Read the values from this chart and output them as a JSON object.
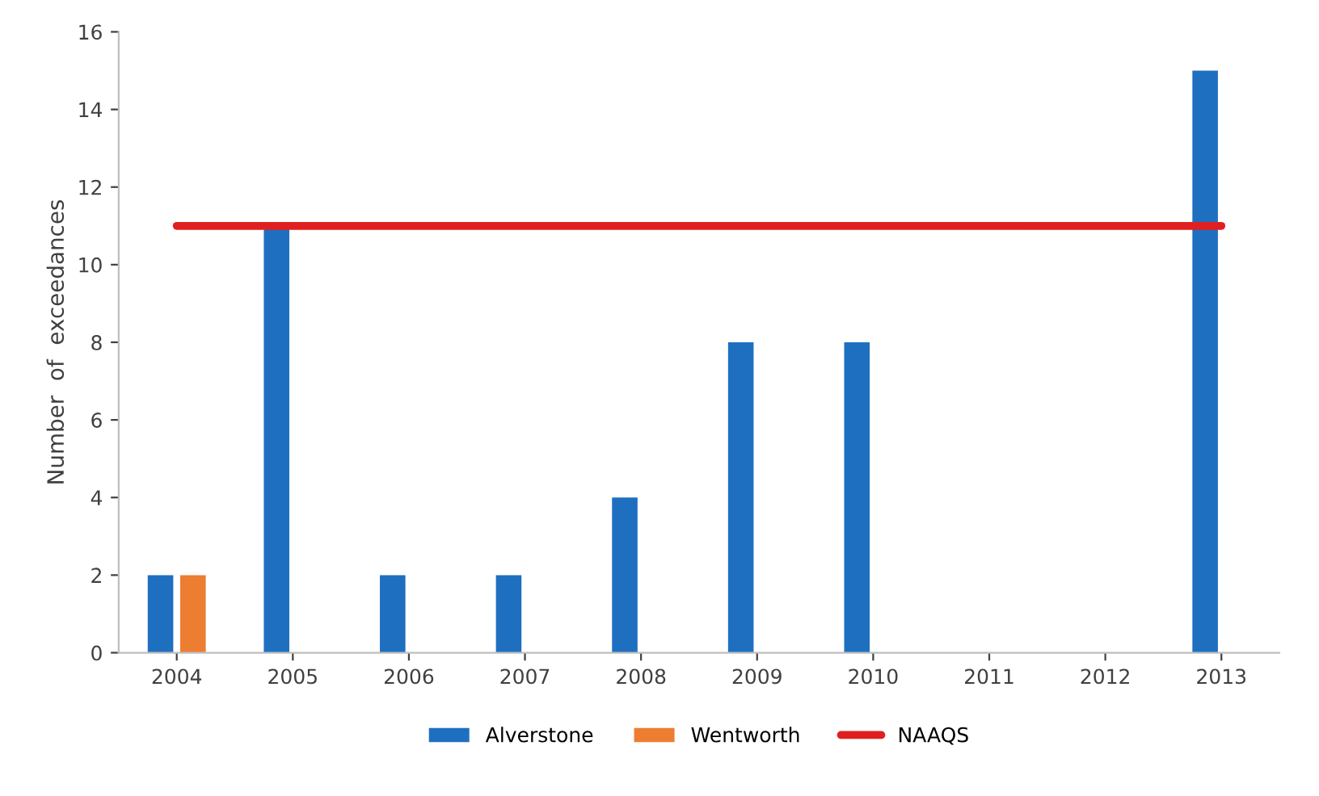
{
  "chart_data": {
    "type": "bar",
    "ylabel": "Number  of  exceedances",
    "categories": [
      "2004",
      "2005",
      "2006",
      "2007",
      "2008",
      "2009",
      "2010",
      "2011",
      "2012",
      "2013"
    ],
    "series": [
      {
        "name": "Alverstone",
        "color": "#1f6fc0",
        "values": [
          2,
          11,
          2,
          2,
          4,
          8,
          8,
          0,
          0,
          15
        ]
      },
      {
        "name": "Wentworth",
        "color": "#ed7d31",
        "values": [
          2,
          0,
          0,
          0,
          0,
          0,
          0,
          0,
          0,
          0
        ]
      },
      {
        "name": "NAAQS",
        "type": "line",
        "color": "#e02020",
        "values": [
          11,
          11,
          11,
          11,
          11,
          11,
          11,
          11,
          11,
          11
        ]
      }
    ],
    "ylim": [
      0,
      16
    ],
    "yticks": [
      0,
      2,
      4,
      6,
      8,
      10,
      12,
      14,
      16
    ],
    "grid": false,
    "legend": "bottom"
  }
}
